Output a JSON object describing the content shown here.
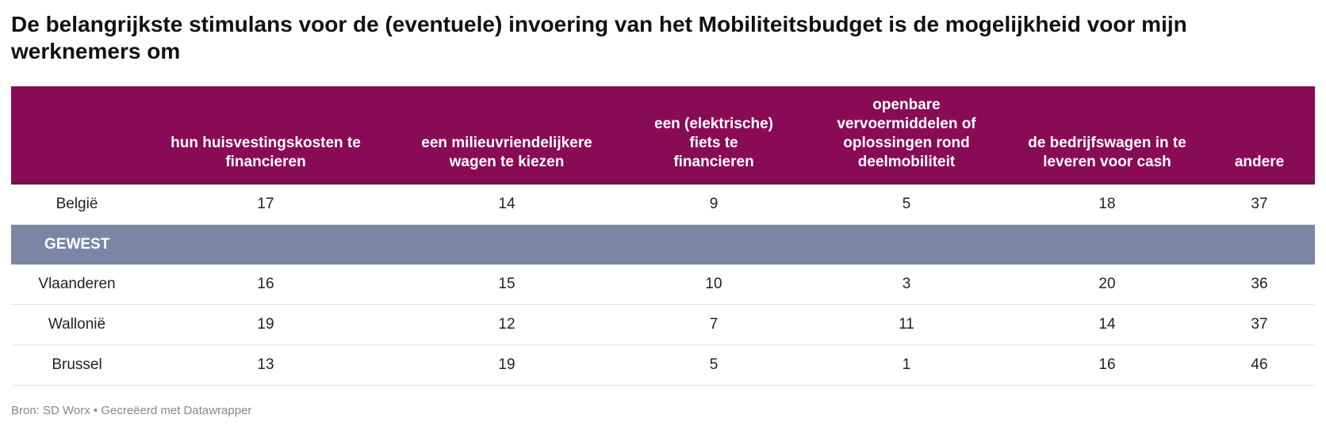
{
  "title": "De belangrijkste stimulans voor de (eventuele) invoering van het Mobiliteitsbudget is de mogelijkheid voor mijn werknemers om",
  "table": {
    "columns": [
      "hun huisvestingskosten te financieren",
      "een milieuvriendelijkere wagen te kiezen",
      "een (elektrische) fiets te financieren",
      "openbare vervoermiddelen of oplossingen rond deelmobiliteit",
      "de bedrijfswagen in te leveren voor cash",
      "andere"
    ],
    "top_row": {
      "label": "België",
      "values": [
        17,
        14,
        9,
        5,
        18,
        37
      ]
    },
    "group": "GEWEST",
    "rows": [
      {
        "label": "Vlaanderen",
        "values": [
          16,
          15,
          10,
          3,
          20,
          36
        ]
      },
      {
        "label": "Wallonië",
        "values": [
          19,
          12,
          7,
          11,
          14,
          37
        ]
      },
      {
        "label": "Brussel",
        "values": [
          13,
          19,
          5,
          1,
          16,
          46
        ]
      }
    ]
  },
  "footer": "Bron: SD Worx • Gecreëerd met Datawrapper"
}
